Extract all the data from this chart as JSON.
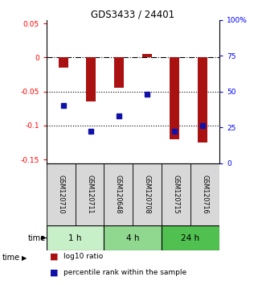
{
  "title": "GDS3433 / 24401",
  "samples": [
    "GSM120710",
    "GSM120711",
    "GSM120648",
    "GSM120708",
    "GSM120715",
    "GSM120716"
  ],
  "time_groups": [
    {
      "label": "1 h",
      "cols": [
        0,
        1
      ],
      "color": "#c8f0c8"
    },
    {
      "label": "4 h",
      "cols": [
        2,
        3
      ],
      "color": "#90d890"
    },
    {
      "label": "24 h",
      "cols": [
        4,
        5
      ],
      "color": "#50c050"
    }
  ],
  "log10_ratio_heights": [
    -0.015,
    -0.065,
    -0.045,
    0.005,
    -0.12,
    -0.125
  ],
  "percentile_rank": [
    40,
    22,
    33,
    48,
    22,
    26
  ],
  "bar_color": "#aa1111",
  "dot_color": "#1111aa",
  "ylim_left": [
    -0.155,
    0.055
  ],
  "ylim_right": [
    0,
    100
  ],
  "yticks_left": [
    0.05,
    0,
    -0.05,
    -0.1,
    -0.15
  ],
  "yticks_right": [
    100,
    75,
    50,
    25,
    0
  ],
  "dotted_lines": [
    -0.05,
    -0.1
  ],
  "legend_items": [
    "log10 ratio",
    "percentile rank within the sample"
  ]
}
